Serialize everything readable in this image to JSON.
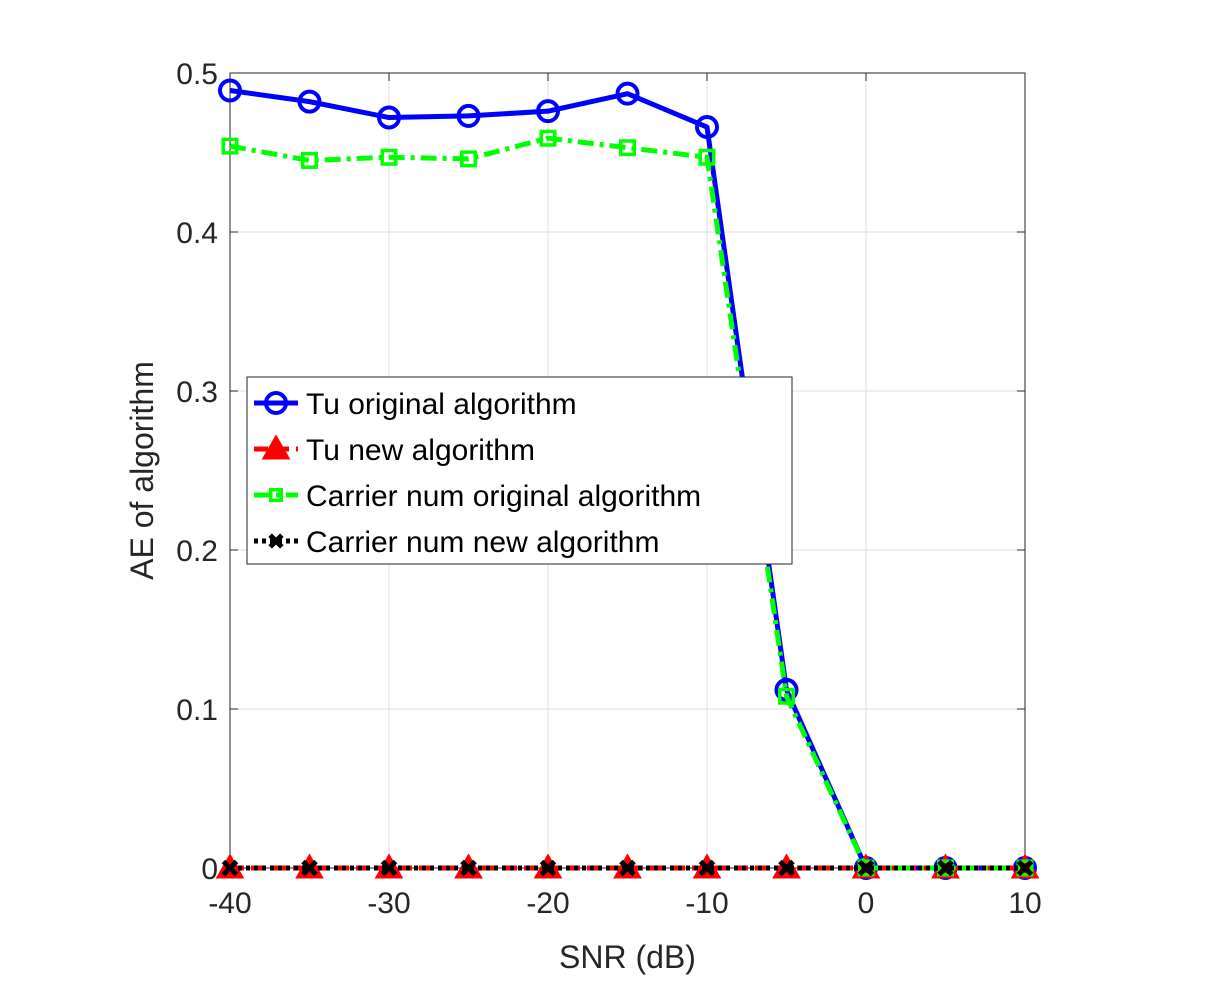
{
  "chart_data": {
    "type": "line",
    "title": "",
    "xlabel": "SNR (dB)",
    "ylabel": "AE of algorithm",
    "xlim": [
      -40,
      10
    ],
    "ylim": [
      0,
      0.5
    ],
    "grid": true,
    "x_ticks": [
      -40,
      -30,
      -20,
      -10,
      0,
      10
    ],
    "y_ticks": [
      0,
      0.1,
      0.2,
      0.3,
      0.4,
      0.5
    ],
    "x_tick_labels": [
      "-40",
      "-30",
      "-20",
      "-10",
      "0",
      "10"
    ],
    "y_tick_labels": [
      "0",
      "0.1",
      "0.2",
      "0.3",
      "0.4",
      "0.5"
    ],
    "x": [
      -40,
      -35,
      -30,
      -25,
      -20,
      -15,
      -10,
      -5,
      0,
      5,
      10
    ],
    "legend_position": "center-left",
    "series": [
      {
        "name": "Tu original algorithm",
        "values": [
          0.489,
          0.482,
          0.472,
          0.473,
          0.476,
          0.487,
          0.466,
          0.112,
          0.0,
          0.0,
          0.0
        ],
        "color": "#0000ff",
        "line_style": "solid",
        "marker": "circle"
      },
      {
        "name": "Tu new algorithm",
        "values": [
          0,
          0,
          0,
          0,
          0,
          0,
          0,
          0,
          0,
          0,
          0
        ],
        "color": "#ff0000",
        "line_style": "dashed",
        "marker": "triangle"
      },
      {
        "name": "Carrier num original algorithm",
        "values": [
          0.454,
          0.445,
          0.447,
          0.446,
          0.459,
          0.453,
          0.447,
          0.108,
          0.0,
          0.0,
          0.0
        ],
        "color": "#00ff00",
        "line_style": "dashdot",
        "marker": "square"
      },
      {
        "name": "Carrier num new algorithm",
        "values": [
          0,
          0,
          0,
          0,
          0,
          0,
          0,
          0,
          0,
          0,
          0
        ],
        "color": "#000000",
        "line_style": "dotted",
        "marker": "x"
      }
    ]
  }
}
